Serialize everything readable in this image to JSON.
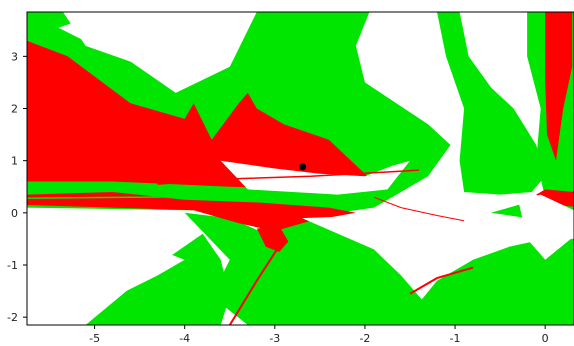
{
  "chart_data": {
    "type": "heatmap",
    "title": "",
    "xlabel": "",
    "ylabel": "",
    "xlim": [
      -5.75,
      0.32
    ],
    "ylim": [
      -2.15,
      3.85
    ],
    "x_ticks": [
      {
        "value": -5,
        "label": "-5"
      },
      {
        "value": -4,
        "label": "-4"
      },
      {
        "value": -3,
        "label": "-3"
      },
      {
        "value": -2,
        "label": "-2"
      },
      {
        "value": -1,
        "label": "-1"
      },
      {
        "value": 0,
        "label": "0"
      }
    ],
    "y_ticks": [
      {
        "value": 3,
        "label": "3"
      },
      {
        "value": 2,
        "label": "2"
      },
      {
        "value": 1,
        "label": "1"
      },
      {
        "value": 0,
        "label": "0"
      },
      {
        "value": -1,
        "label": "-1"
      },
      {
        "value": -2,
        "label": "-2"
      }
    ],
    "colors": {
      "background": "#ffffff",
      "green": "#00e600",
      "red": "#ff0000",
      "marker": "#000000",
      "axis": "#000000"
    },
    "marked_point": {
      "x": -2.69,
      "y": 0.88
    },
    "regions": [
      {
        "color": "green",
        "points": [
          [
            -5.75,
            3.85
          ],
          [
            -5.35,
            3.85
          ],
          [
            -5.1,
            3.2
          ],
          [
            -4.6,
            2.9
          ],
          [
            -4.1,
            2.3
          ],
          [
            -3.5,
            2.8
          ],
          [
            -3.2,
            3.85
          ],
          [
            -1.95,
            3.85
          ],
          [
            -2.1,
            3.2
          ],
          [
            -2.0,
            2.5
          ],
          [
            -1.3,
            1.7
          ],
          [
            -1.05,
            1.3
          ],
          [
            -1.3,
            0.7
          ],
          [
            -1.7,
            0.3
          ],
          [
            -1.9,
            0.1
          ],
          [
            -2.3,
            0.0
          ],
          [
            -4.0,
            0.05
          ],
          [
            -5.75,
            0.1
          ]
        ]
      },
      {
        "color": "green",
        "points": [
          [
            -1.2,
            3.85
          ],
          [
            -0.95,
            3.85
          ],
          [
            -0.85,
            3.0
          ],
          [
            -0.6,
            2.4
          ],
          [
            -0.35,
            2.0
          ],
          [
            -0.1,
            1.3
          ],
          [
            0.0,
            0.7
          ],
          [
            -0.15,
            0.4
          ],
          [
            -0.5,
            0.35
          ],
          [
            -0.9,
            0.4
          ],
          [
            -0.95,
            1.0
          ],
          [
            -0.9,
            2.0
          ],
          [
            -1.1,
            3.0
          ]
        ]
      },
      {
        "color": "green",
        "points": [
          [
            -0.2,
            3.85
          ],
          [
            0.32,
            3.85
          ],
          [
            0.32,
            0.0
          ],
          [
            0.15,
            0.0
          ],
          [
            0.0,
            0.3
          ],
          [
            -0.1,
            1.0
          ],
          [
            -0.05,
            2.0
          ],
          [
            -0.2,
            3.0
          ]
        ]
      },
      {
        "color": "green",
        "points": [
          [
            -4.0,
            0.0
          ],
          [
            -3.5,
            -0.1
          ],
          [
            -3.1,
            -0.4
          ],
          [
            -2.7,
            -0.1
          ],
          [
            -2.2,
            -0.3
          ],
          [
            -1.9,
            -0.7
          ],
          [
            -1.6,
            -1.2
          ],
          [
            -1.3,
            -1.8
          ],
          [
            -1.1,
            -2.15
          ],
          [
            -3.3,
            -2.15
          ],
          [
            -3.7,
            -1.6
          ],
          [
            -3.5,
            -0.9
          ]
        ]
      },
      {
        "color": "green",
        "points": [
          [
            -1.2,
            -1.3
          ],
          [
            -0.8,
            -0.9
          ],
          [
            -0.4,
            -0.65
          ],
          [
            0.0,
            -0.5
          ],
          [
            0.32,
            -0.5
          ],
          [
            0.32,
            -2.15
          ],
          [
            -1.6,
            -2.15
          ]
        ]
      },
      {
        "color": "green",
        "points": [
          [
            -5.1,
            -2.15
          ],
          [
            -4.3,
            -1.0
          ],
          [
            -3.8,
            -0.4
          ],
          [
            -3.6,
            -0.9
          ],
          [
            -3.5,
            -1.6
          ],
          [
            -3.6,
            -2.15
          ]
        ]
      },
      {
        "color": "green",
        "points": [
          [
            -0.6,
            0.0
          ],
          [
            -0.2,
            -0.1
          ],
          [
            0.0,
            -0.05
          ],
          [
            0.32,
            -0.3
          ],
          [
            0.32,
            0.45
          ],
          [
            0.0,
            0.3
          ],
          [
            -0.3,
            0.15
          ]
        ]
      },
      {
        "color": "red",
        "points": [
          [
            -5.75,
            3.3
          ],
          [
            -5.3,
            3.0
          ],
          [
            -4.6,
            2.1
          ],
          [
            -4.0,
            1.8
          ],
          [
            -3.9,
            2.1
          ],
          [
            -3.7,
            1.4
          ],
          [
            -3.4,
            2.1
          ],
          [
            -3.3,
            2.3
          ],
          [
            -3.2,
            2.0
          ],
          [
            -2.9,
            1.7
          ],
          [
            -2.4,
            1.4
          ],
          [
            -2.0,
            0.75
          ],
          [
            -1.85,
            0.6
          ],
          [
            -2.0,
            0.5
          ],
          [
            -2.3,
            0.45
          ],
          [
            -3.5,
            0.5
          ],
          [
            -4.8,
            0.6
          ],
          [
            -5.75,
            0.6
          ]
        ]
      },
      {
        "color": "red",
        "points": [
          [
            -5.75,
            0.35
          ],
          [
            -4.8,
            0.4
          ],
          [
            -4.0,
            0.25
          ],
          [
            -3.2,
            0.2
          ],
          [
            -2.4,
            0.1
          ],
          [
            -2.1,
            0.0
          ],
          [
            -2.6,
            -0.15
          ],
          [
            -3.0,
            -0.35
          ],
          [
            -3.4,
            -0.2
          ],
          [
            -3.9,
            0.05
          ],
          [
            -4.8,
            0.1
          ],
          [
            -5.75,
            0.15
          ]
        ]
      },
      {
        "color": "red",
        "points": [
          [
            -3.2,
            -0.3
          ],
          [
            -2.95,
            -0.25
          ],
          [
            -2.85,
            -0.55
          ],
          [
            -2.95,
            -0.75
          ],
          [
            -3.1,
            -0.65
          ]
        ]
      },
      {
        "color": "red",
        "points": [
          [
            0.0,
            3.85
          ],
          [
            0.3,
            3.85
          ],
          [
            0.3,
            2.8
          ],
          [
            0.2,
            2.0
          ],
          [
            0.12,
            1.0
          ],
          [
            0.02,
            1.5
          ],
          [
            0.0,
            2.5
          ]
        ]
      },
      {
        "color": "red",
        "points": [
          [
            -0.1,
            0.35
          ],
          [
            0.0,
            0.45
          ],
          [
            0.32,
            0.4
          ],
          [
            0.32,
            0.12
          ],
          [
            0.1,
            0.15
          ]
        ]
      },
      {
        "color": "white",
        "points": [
          [
            -5.4,
            3.55
          ],
          [
            -4.9,
            3.85
          ],
          [
            -4.2,
            3.85
          ],
          [
            -4.3,
            3.3
          ],
          [
            -4.6,
            2.9
          ],
          [
            -5.0,
            3.2
          ]
        ]
      },
      {
        "color": "white",
        "points": [
          [
            -3.6,
            1.0
          ],
          [
            -3.0,
            0.85
          ],
          [
            -2.5,
            0.75
          ],
          [
            -2.0,
            0.7
          ],
          [
            -1.7,
            0.9
          ],
          [
            -1.5,
            1.0
          ],
          [
            -1.75,
            0.45
          ],
          [
            -2.3,
            0.35
          ],
          [
            -3.3,
            0.45
          ]
        ]
      },
      {
        "color": "white",
        "points": [
          [
            -0.3,
            0.25
          ],
          [
            -0.05,
            0.35
          ],
          [
            0.32,
            0.05
          ],
          [
            0.32,
            -0.45
          ],
          [
            0.0,
            -0.9
          ],
          [
            -0.2,
            -0.5
          ]
        ]
      },
      {
        "color": "white",
        "points": [
          [
            -2.7,
            -0.1
          ],
          [
            -1.9,
            -0.05
          ],
          [
            -1.5,
            -0.25
          ],
          [
            -1.2,
            -0.6
          ],
          [
            -1.4,
            -0.9
          ],
          [
            -1.9,
            -0.7
          ]
        ]
      },
      {
        "color": "white",
        "points": [
          [
            -5.75,
            -0.25
          ],
          [
            -4.6,
            -0.5
          ],
          [
            -4.0,
            -0.9
          ],
          [
            -4.3,
            -1.2
          ],
          [
            -5.0,
            -1.8
          ],
          [
            -5.75,
            -1.9
          ]
        ]
      }
    ],
    "curves": [
      {
        "color": "red",
        "width": 2,
        "points": [
          [
            -3.5,
            -2.15
          ],
          [
            -3.2,
            -1.3
          ],
          [
            -2.9,
            -0.5
          ]
        ]
      },
      {
        "color": "red",
        "width": 2,
        "points": [
          [
            -1.5,
            -1.55
          ],
          [
            -1.2,
            -1.25
          ],
          [
            -0.8,
            -1.05
          ]
        ]
      },
      {
        "color": "red",
        "width": 1.5,
        "points": [
          [
            -4.3,
            0.55
          ],
          [
            -3.5,
            0.65
          ],
          [
            -2.6,
            0.7
          ],
          [
            -1.8,
            0.78
          ],
          [
            -1.4,
            0.82
          ]
        ]
      },
      {
        "color": "green",
        "width": 1.5,
        "points": [
          [
            -5.75,
            0.28
          ],
          [
            -4.5,
            0.3
          ],
          [
            -3.5,
            0.32
          ],
          [
            -2.5,
            0.25
          ],
          [
            -1.8,
            0.2
          ]
        ]
      },
      {
        "color": "red",
        "width": 1,
        "points": [
          [
            -1.9,
            0.3
          ],
          [
            -1.6,
            0.1
          ],
          [
            -1.2,
            -0.05
          ],
          [
            -0.9,
            -0.15
          ]
        ]
      }
    ]
  }
}
